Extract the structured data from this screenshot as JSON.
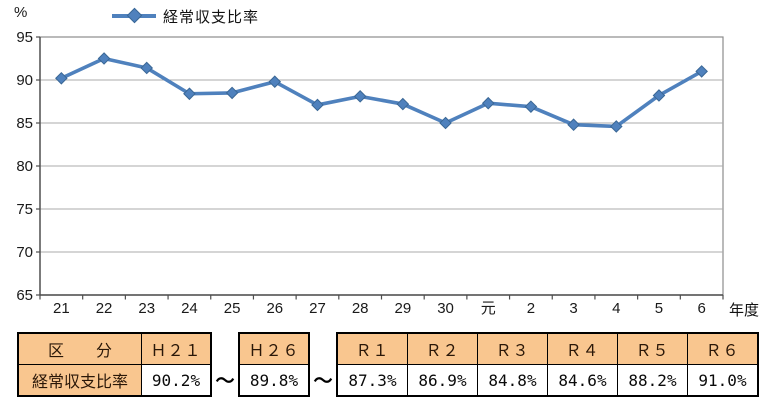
{
  "chart": {
    "y_unit_label": "%",
    "x_unit_label": "年度"
  },
  "chart_data": {
    "type": "line",
    "title": "",
    "categories": [
      "21",
      "22",
      "23",
      "24",
      "25",
      "26",
      "27",
      "28",
      "29",
      "30",
      "元",
      "2",
      "3",
      "4",
      "5",
      "6"
    ],
    "series": [
      {
        "name": "経常収支比率",
        "values": [
          90.2,
          92.5,
          91.4,
          88.4,
          88.5,
          89.8,
          87.1,
          88.1,
          87.2,
          85.0,
          87.3,
          86.9,
          84.8,
          84.6,
          88.2,
          91.0
        ]
      }
    ],
    "xlabel": "年度",
    "ylabel": "%",
    "ylim": [
      65,
      95
    ],
    "yticks": [
      95,
      90,
      85,
      80,
      75,
      70,
      65
    ],
    "grid": true,
    "legend_position": "top-left",
    "line_color": "#4F81BD",
    "marker": "diamond",
    "marker_color": "#4F81BD",
    "gridline_color": "#ABABAB",
    "frame_color": "#8C8C8C"
  },
  "table": {
    "corner_header": "区　　分",
    "row_label": "経常収支比率",
    "separator": "～",
    "header_bg": "#F9C68F",
    "border_color": "#000000",
    "groups": [
      {
        "headers": [
          "Ｈ２１"
        ],
        "values": [
          "90.2%"
        ]
      },
      {
        "headers": [
          "Ｈ２６"
        ],
        "values": [
          "89.8%"
        ]
      },
      {
        "headers": [
          "Ｒ１",
          "Ｒ２",
          "Ｒ３",
          "Ｒ４",
          "Ｒ５",
          "Ｒ６"
        ],
        "values": [
          "87.3%",
          "86.9%",
          "84.8%",
          "84.6%",
          "88.2%",
          "91.0%"
        ]
      }
    ]
  }
}
